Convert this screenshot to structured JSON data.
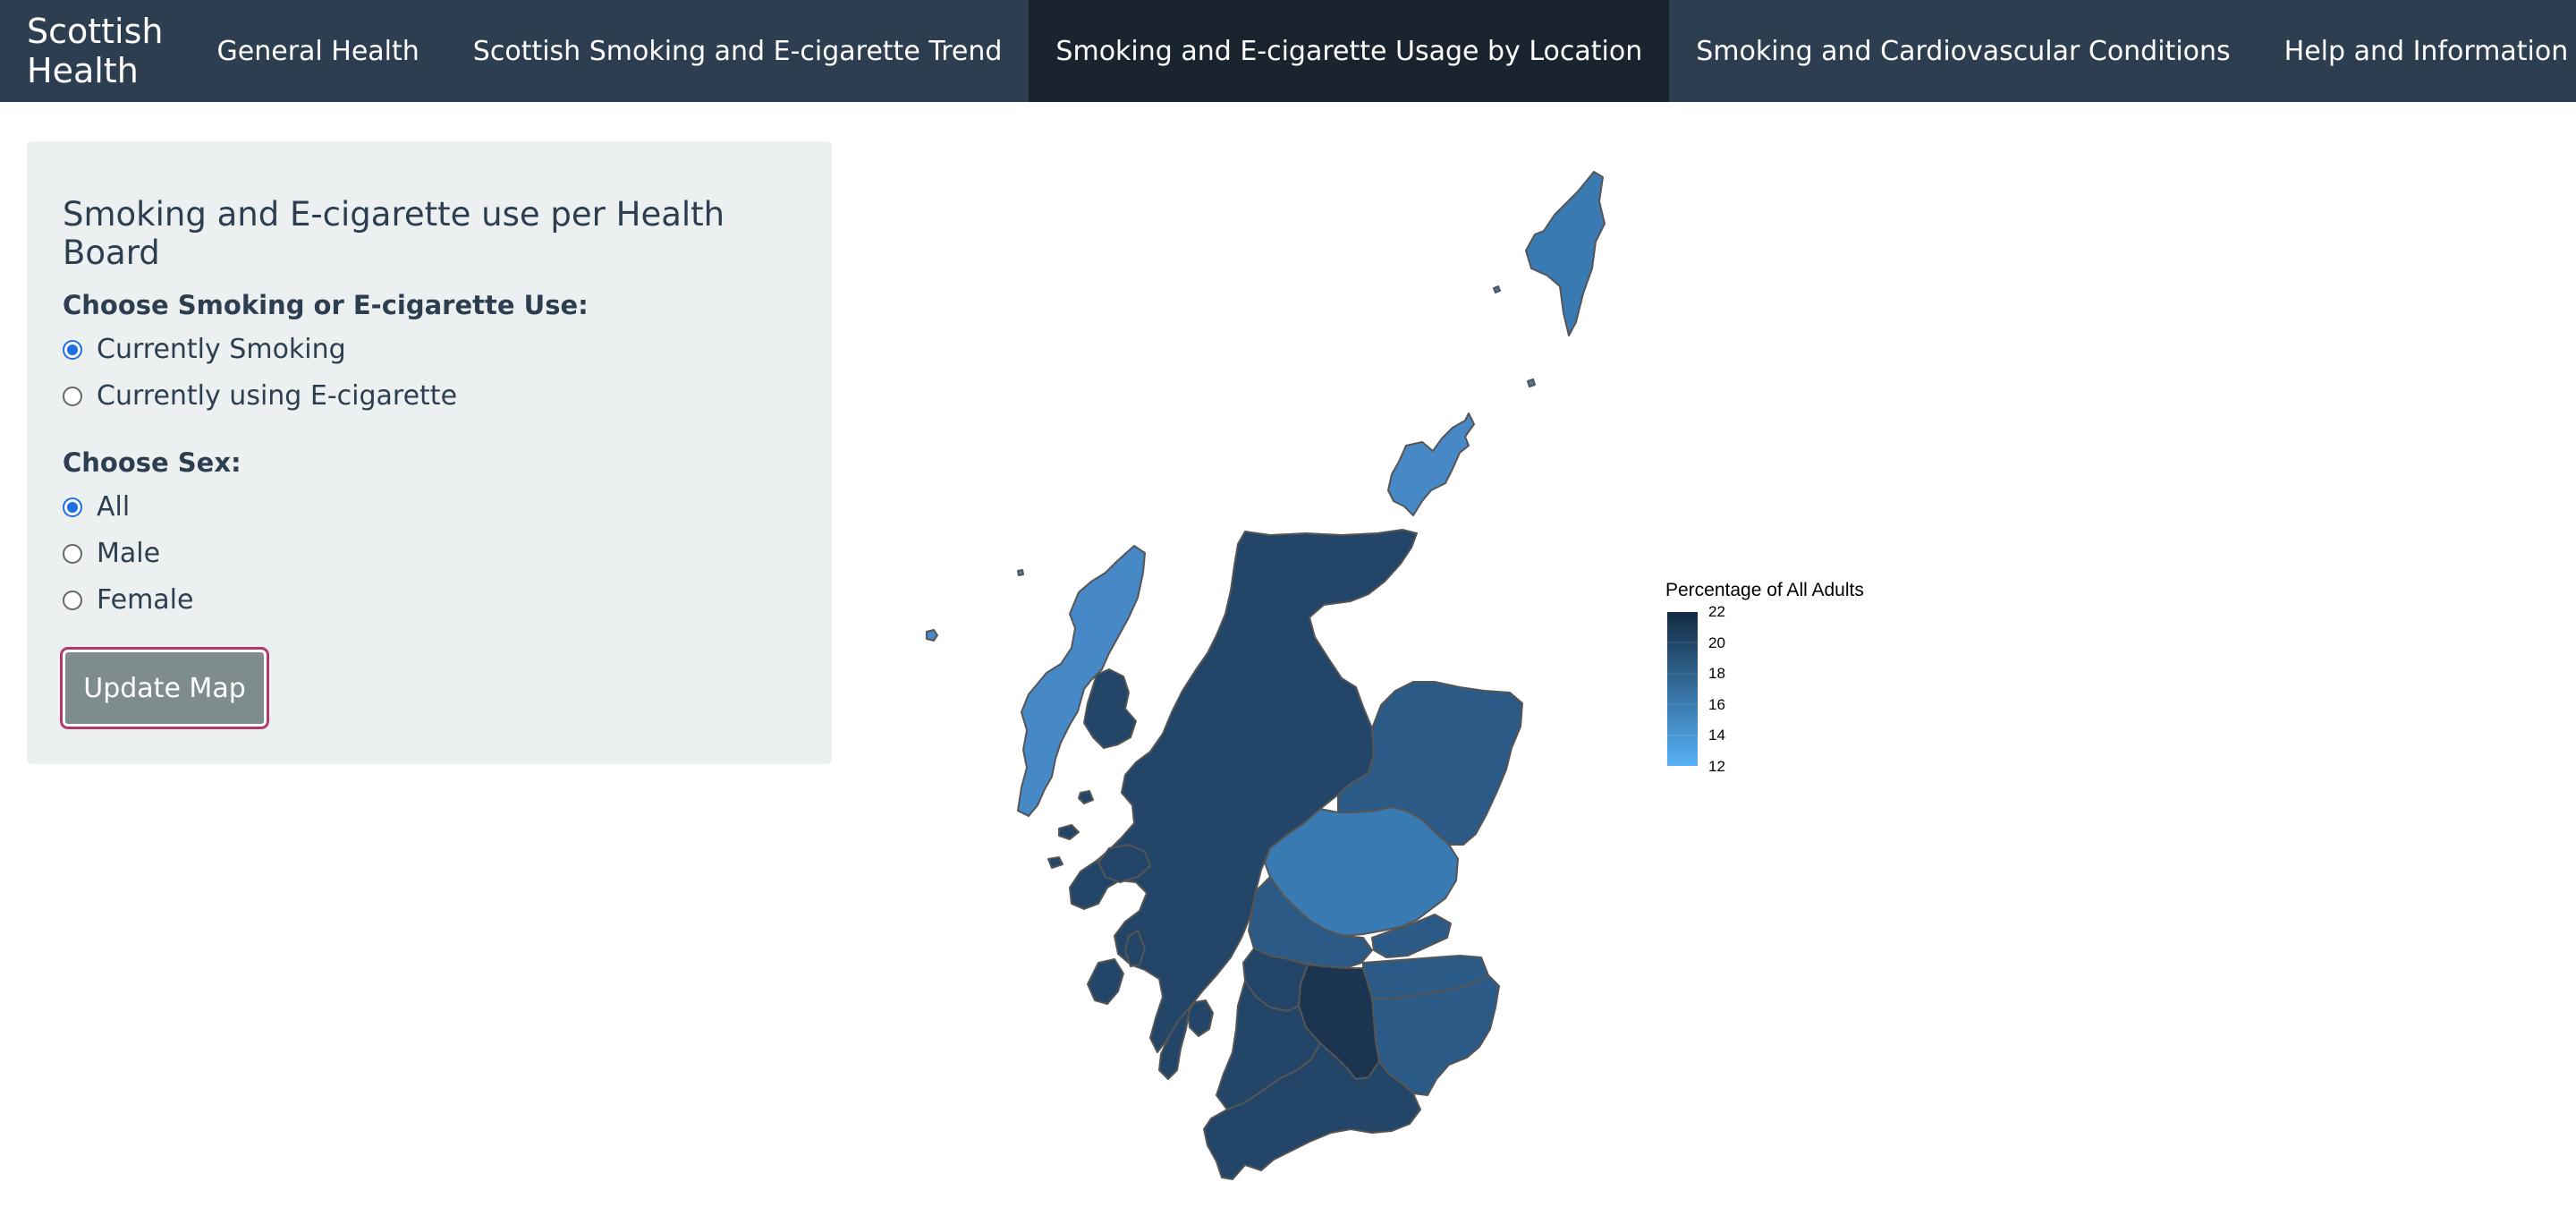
{
  "navbar": {
    "brand": "Scottish Health",
    "tabs": [
      {
        "label": "General Health"
      },
      {
        "label": "Scottish Smoking and E-cigarette Trend"
      },
      {
        "label": "Smoking and E-cigarette Usage by Location",
        "active": true
      },
      {
        "label": "Smoking and Cardiovascular Conditions"
      },
      {
        "label": "Help and Information"
      }
    ]
  },
  "sidebar": {
    "title": "Smoking and E-cigarette use per Health Board",
    "usage_label": "Choose Smoking or E-cigarette Use:",
    "usage_options": [
      {
        "label": "Currently Smoking",
        "checked": true
      },
      {
        "label": "Currently using E-cigarette",
        "checked": false
      }
    ],
    "sex_label": "Choose Sex:",
    "sex_options": [
      {
        "label": "All",
        "checked": true
      },
      {
        "label": "Male",
        "checked": false
      },
      {
        "label": "Female",
        "checked": false
      }
    ],
    "button_label": "Update Map"
  },
  "map": {
    "legend": {
      "title": "Percentage of All Adults",
      "ticks": [
        "22",
        "20",
        "18",
        "16",
        "14",
        "12"
      ],
      "color_high": "#132b43",
      "color_low": "#56b1f7"
    },
    "colors": {
      "darkest": "#1b3450",
      "dark": "#234668",
      "mid": "#2c5a86",
      "light": "#3a7ab3",
      "lighter": "#4689c6",
      "border": "#555555"
    }
  }
}
